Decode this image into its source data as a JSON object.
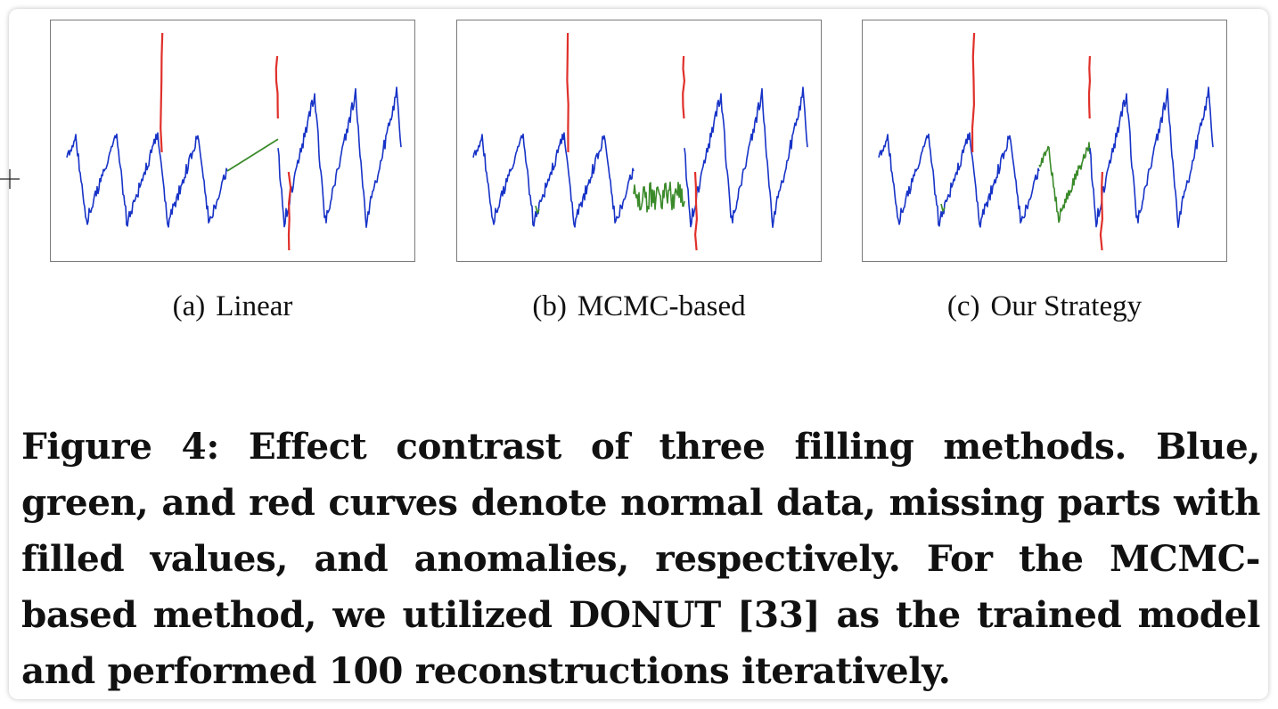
{
  "figure": {
    "panels": [
      {
        "id": "a",
        "tag": "(a)",
        "label": "Linear",
        "method": "linear"
      },
      {
        "id": "b",
        "tag": "(b)",
        "label": "MCMC-based",
        "method": "mcmc"
      },
      {
        "id": "c",
        "tag": "(c)",
        "label": "Our Strategy",
        "method": "ours"
      }
    ],
    "caption_label": "Figure 4:",
    "caption_text": "Effect contrast of three filling methods. Blue, green, and red curves denote normal data, missing parts with filled values, and anomalies, respectively. For the MCMC-based method, we utilized DONUT [33] as the trained model and performed 100 reconstructions iteratively."
  },
  "colors": {
    "normal": "#1733c7",
    "filled": "#3a8a2a",
    "anomaly": "#e0302a"
  }
}
